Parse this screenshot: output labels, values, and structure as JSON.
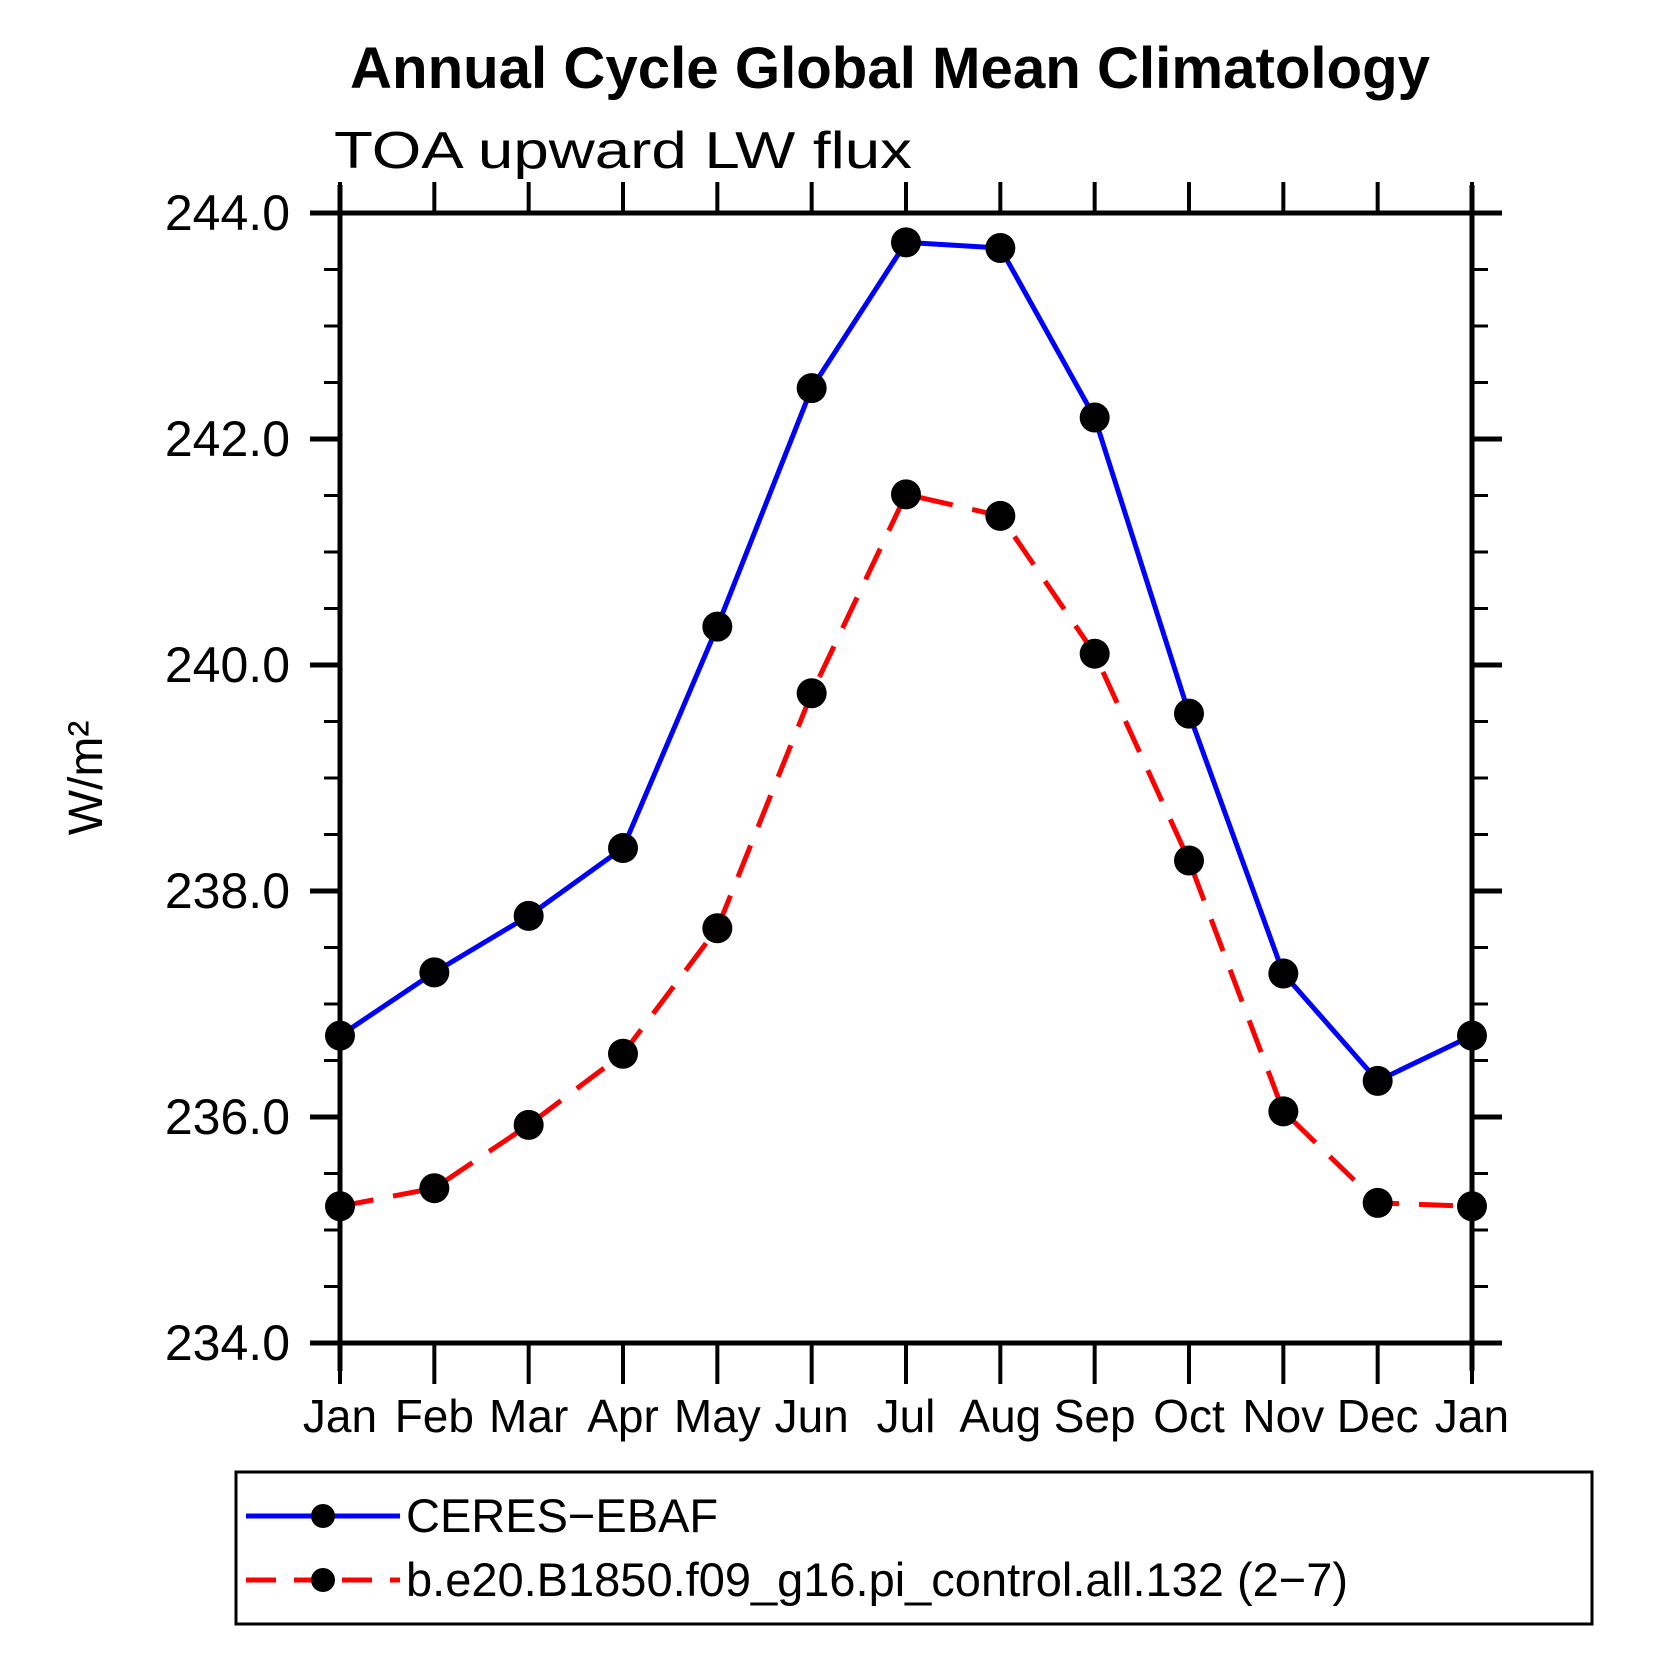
{
  "chart_data": {
    "type": "line",
    "title": "Annual Cycle Global Mean Climatology",
    "subtitle": "TOA upward LW flux",
    "ylabel": "W/m²",
    "categories": [
      "Jan",
      "Feb",
      "Mar",
      "Apr",
      "May",
      "Jun",
      "Jul",
      "Aug",
      "Sep",
      "Oct",
      "Nov",
      "Dec",
      "Jan"
    ],
    "y_axis": {
      "min": 234.0,
      "max": 244.0,
      "major_step": 2.0,
      "minor_step": 0.5,
      "tick_values": [
        244.0,
        242.0,
        240.0,
        238.0,
        236.0,
        234.0
      ],
      "tick_labels": [
        "244.0",
        "242.0",
        "240.0",
        "238.0",
        "236.0",
        "234.0"
      ]
    },
    "grid": "off",
    "legend_position": "bottom-left-box",
    "axis_color": "#000000",
    "marker_color": "#000000",
    "series": [
      {
        "name": "CERES−EBAF",
        "color": "#0000ff",
        "style": "solid",
        "marker": "filled-circle",
        "values": [
          236.72,
          237.28,
          237.78,
          238.38,
          240.34,
          242.45,
          243.74,
          243.69,
          242.19,
          239.57,
          237.27,
          236.32,
          236.72
        ]
      },
      {
        "name": "b.e20.B1850.f09_g16.pi_control.all.132 (2−7)",
        "color": "#ff0000",
        "style": "dashed",
        "marker": "filled-circle",
        "values": [
          235.21,
          235.37,
          235.93,
          236.56,
          237.67,
          239.75,
          241.51,
          241.32,
          240.1,
          238.27,
          236.05,
          235.24,
          235.21
        ]
      }
    ]
  }
}
